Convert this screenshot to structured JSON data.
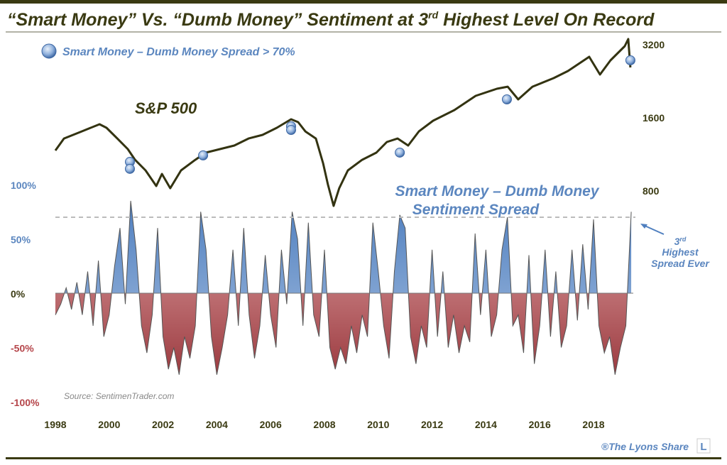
{
  "title": {
    "main": "“Smart Money” Vs. “Dumb Money” Sentiment at 3",
    "sup": "rd",
    "rest": " Highest Level On Record"
  },
  "legend": {
    "label": "Smart Money – Dumb Money Spread > 70%"
  },
  "sp_label": "S&P 500",
  "spread_label": {
    "line1": "Smart Money – Dumb Money",
    "line2": "Sentiment Spread"
  },
  "callout": {
    "line1": "3",
    "sup": "rd",
    "line2": "Highest",
    "line3": "Spread Ever"
  },
  "source": "Source: SentimenTrader.com",
  "credit": {
    "text": "®The Lyons Share",
    "logo": "L"
  },
  "colors": {
    "title": "#3a3a12",
    "sp_line": "#333311",
    "positive": "#6f95c8",
    "negative": "#c0686c",
    "accent_blue": "#5b86bf",
    "accent_red": "#b5454a"
  },
  "chart_data": [
    {
      "type": "line",
      "title": "S&P 500",
      "yscale": "log",
      "y_ticks": [
        "3200",
        "1600",
        "800"
      ],
      "y_tick_values": [
        3200,
        1600,
        800
      ],
      "x_ticks": [
        "1998",
        "2000",
        "2002",
        "2004",
        "2006",
        "2008",
        "2010",
        "2012",
        "2014",
        "2016",
        "2018"
      ],
      "x": [
        1998.0,
        1998.32,
        1998.98,
        1999.64,
        1999.9,
        2000.3,
        2000.69,
        2000.96,
        2001.35,
        2001.75,
        2001.96,
        2002.27,
        2002.67,
        2003.2,
        2003.59,
        2004.12,
        2004.65,
        2005.18,
        2005.7,
        2006.23,
        2006.76,
        2007.02,
        2007.29,
        2007.68,
        2007.95,
        2008.13,
        2008.34,
        2008.55,
        2008.87,
        2009.4,
        2009.93,
        2010.32,
        2010.72,
        2011.11,
        2011.51,
        2012.04,
        2012.83,
        2013.62,
        2014.41,
        2014.81,
        2015.2,
        2015.73,
        2016.52,
        2017.05,
        2017.84,
        2018.24,
        2018.63,
        2019.16,
        2019.29,
        2019.37
      ],
      "y": [
        1166,
        1307,
        1398,
        1496,
        1446,
        1307,
        1182,
        1068,
        966,
        833,
        934,
        816,
        966,
        1068,
        1143,
        1182,
        1222,
        1307,
        1352,
        1446,
        1568,
        1526,
        1398,
        1307,
        1033,
        844,
        690,
        816,
        966,
        1068,
        1143,
        1264,
        1307,
        1222,
        1398,
        1547,
        1711,
        1958,
        2094,
        2136,
        1893,
        2136,
        2317,
        2478,
        2834,
        2396,
        2742,
        3136,
        3355,
        2563
      ],
      "markers": {
        "label": "Smart Money – Dumb Money Spread > 70%",
        "x": [
          2000.77,
          2000.77,
          2003.49,
          2006.76,
          2006.76,
          2010.8,
          2014.78,
          2019.37
        ],
        "y": [
          1047,
          980,
          1113,
          1466,
          1417,
          1143,
          1893,
          2742
        ]
      }
    },
    {
      "type": "area",
      "title": "Smart Money – Dumb Money Sentiment Spread",
      "y_ticks": [
        "100%",
        "50%",
        "0%",
        "-50%",
        "-100%"
      ],
      "y_tick_values": [
        100,
        50,
        0,
        -50,
        -100
      ],
      "threshold": 70,
      "ylim": [
        -100,
        100
      ],
      "x_start": 1998.0,
      "x_step": 0.2,
      "values": [
        -20,
        -10,
        5,
        -15,
        10,
        -20,
        20,
        -30,
        30,
        -40,
        -20,
        25,
        60,
        -10,
        85,
        40,
        -30,
        -55,
        -20,
        60,
        -40,
        -70,
        -50,
        -75,
        -40,
        -60,
        -30,
        75,
        40,
        -40,
        -75,
        -50,
        -20,
        40,
        -30,
        60,
        -20,
        -60,
        -30,
        35,
        -20,
        -50,
        40,
        -10,
        75,
        50,
        -30,
        65,
        -20,
        -40,
        40,
        -50,
        -70,
        -50,
        -65,
        -30,
        -55,
        -20,
        -40,
        65,
        20,
        -30,
        -60,
        20,
        72,
        60,
        -40,
        -65,
        -30,
        -50,
        40,
        -40,
        20,
        -50,
        -20,
        -55,
        -30,
        -45,
        55,
        -20,
        40,
        -40,
        -20,
        40,
        70,
        -30,
        -20,
        -55,
        35,
        -65,
        -30,
        40,
        -40,
        20,
        -50,
        -30,
        40,
        -25,
        45,
        -15,
        68,
        -30,
        -55,
        -40,
        -75,
        -50,
        -30,
        75
      ]
    }
  ]
}
